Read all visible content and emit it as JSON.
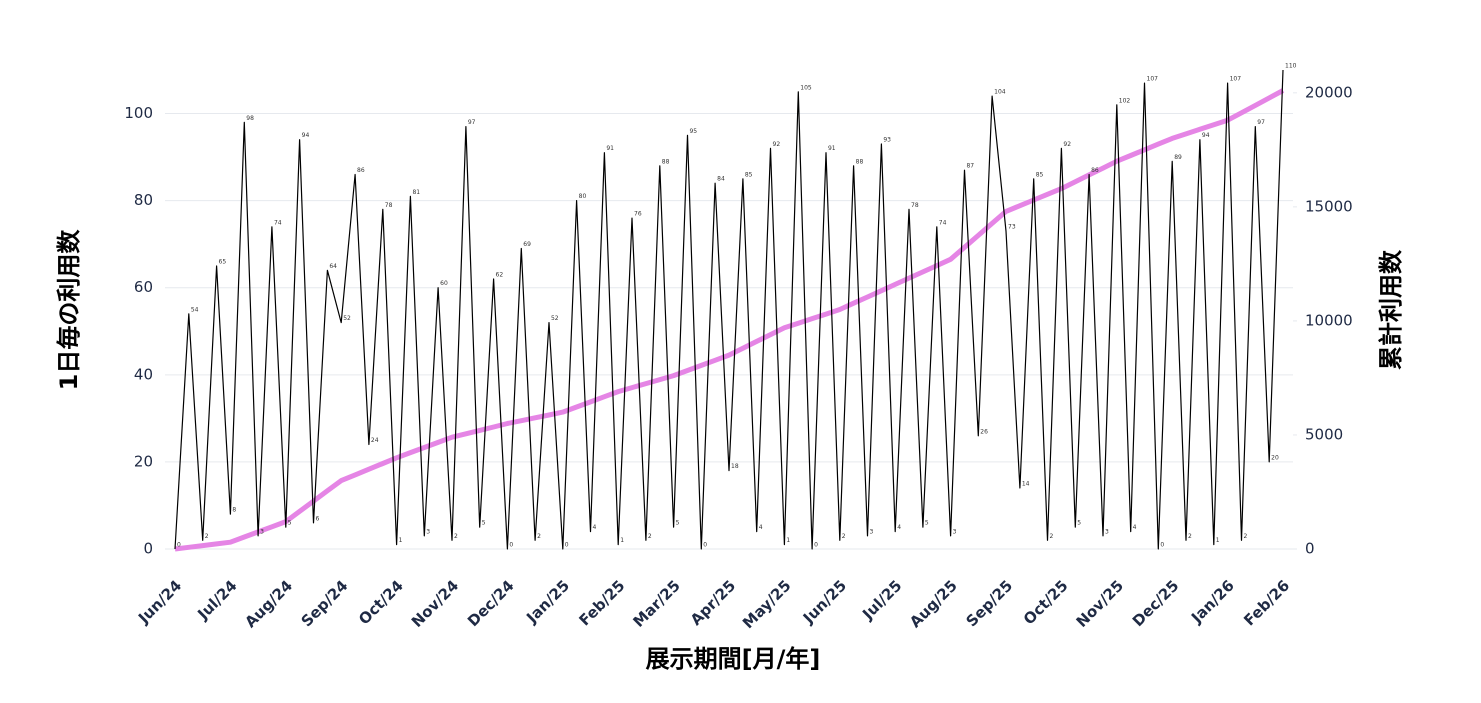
{
  "chart_data": {
    "type": "line",
    "x_label": "展示期間[月/年]",
    "y_label": "1日毎の利用数",
    "y2_label": "累計利用数",
    "categories": [
      "Jun/24",
      null,
      null,
      null,
      "Jul/24",
      null,
      null,
      null,
      "Aug/24",
      null,
      null,
      null,
      "Sep/24",
      null,
      null,
      null,
      "Oct/24",
      null,
      null,
      null,
      "Nov/24",
      null,
      null,
      null,
      "Dec/24",
      null,
      null,
      null,
      "Jan/25",
      null,
      null,
      null,
      "Feb/25",
      null,
      null,
      null,
      "Mar/25",
      null,
      null,
      null,
      "Apr/25",
      null,
      null,
      null,
      "May/25",
      null,
      null,
      null,
      "Jun/25",
      null,
      null,
      null,
      "Jul/25",
      null,
      null,
      null,
      "Aug/25",
      null,
      null,
      null,
      "Sep/25",
      null,
      null,
      null,
      "Oct/25",
      null,
      null,
      null,
      "Nov/25",
      null,
      null,
      null,
      "Dec/25",
      null,
      null,
      null,
      "Jan/26",
      null,
      null,
      null,
      "Feb/26"
    ],
    "series": [
      {
        "color": "#000000",
        "values": [
          0,
          54,
          2,
          65,
          8,
          98,
          3,
          74,
          5,
          94,
          6,
          64,
          52,
          86,
          24,
          78,
          1,
          81,
          3,
          60,
          2,
          97,
          5,
          62,
          0,
          69,
          2,
          52,
          0,
          80,
          4,
          91,
          1,
          76,
          2,
          88,
          5,
          95,
          0,
          84,
          18,
          85,
          4,
          92,
          1,
          105,
          0,
          91,
          2,
          88,
          3,
          93,
          4,
          78,
          5,
          74,
          3,
          87,
          26,
          104,
          73,
          14,
          85,
          2,
          92,
          5,
          86,
          3,
          102,
          4,
          107,
          0,
          89,
          2,
          94,
          1,
          107,
          2,
          97,
          20,
          110
        ]
      },
      {
        "color": "#e585e5",
        "axis": "y2",
        "values": [
          0,
          75,
          150,
          225,
          300,
          525,
          750,
          975,
          1200,
          1650,
          2100,
          2550,
          3000,
          3250,
          3500,
          3750,
          4000,
          4225,
          4450,
          4675,
          4900,
          5050,
          5200,
          5350,
          5500,
          5625,
          5750,
          5875,
          6000,
          6225,
          6450,
          6675,
          6900,
          7075,
          7250,
          7425,
          7600,
          7825,
          8050,
          8275,
          8500,
          8800,
          9100,
          9400,
          9700,
          9900,
          10100,
          10300,
          10500,
          10775,
          11050,
          11325,
          11600,
          11875,
          12150,
          12425,
          12700,
          13225,
          13750,
          14275,
          14800,
          15050,
          15300,
          15550,
          15800,
          16100,
          16400,
          16700,
          17000,
          17250,
          17500,
          17750,
          18000,
          18200,
          18400,
          18600,
          18800,
          19125,
          19450,
          19775,
          20100
        ]
      }
    ],
    "ylim": [
      0,
      110
    ],
    "yticks": [
      0,
      20,
      40,
      60,
      80,
      100
    ],
    "y2lim": [
      0,
      21000
    ],
    "y2ticks": [
      0,
      5000,
      10000,
      15000,
      20000
    ],
    "grid": true
  }
}
